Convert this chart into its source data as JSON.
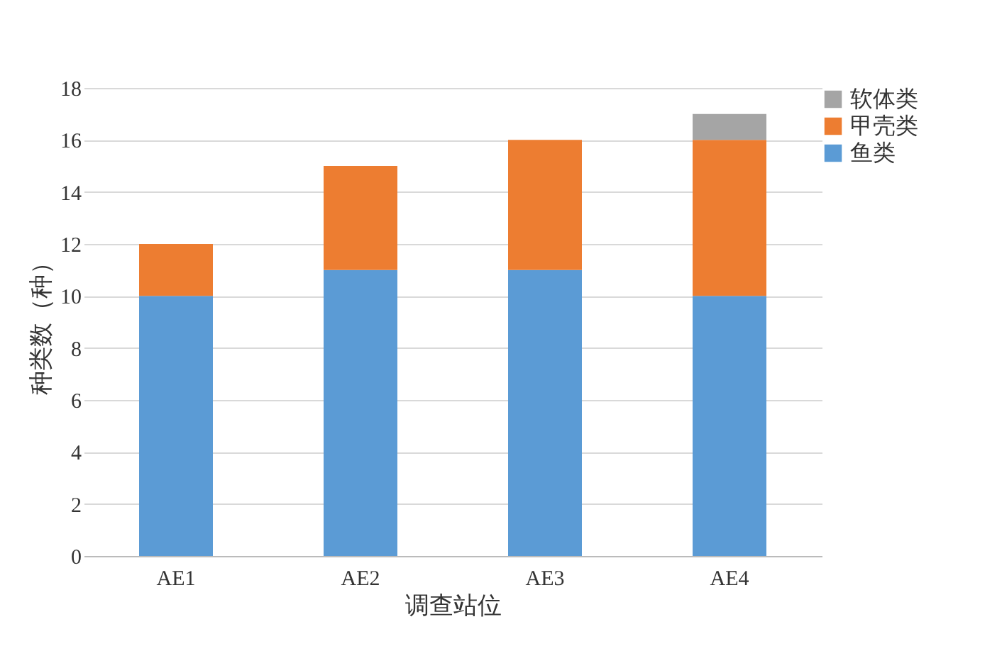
{
  "chart_data": {
    "type": "bar",
    "stacked": true,
    "xlabel": "调查站位",
    "ylabel": "种类数（种）",
    "categories": [
      "AE1",
      "AE2",
      "AE3",
      "AE4"
    ],
    "series": [
      {
        "name": "鱼类",
        "color": "#5b9bd5",
        "values": [
          10,
          11,
          11,
          10
        ]
      },
      {
        "name": "甲壳类",
        "color": "#ed7d31",
        "values": [
          2,
          4,
          5,
          6
        ]
      },
      {
        "name": "软体类",
        "color": "#a5a5a5",
        "values": [
          null,
          null,
          null,
          1
        ]
      }
    ],
    "ylim": [
      0,
      18
    ],
    "yticks": [
      0,
      2,
      4,
      6,
      8,
      10,
      12,
      14,
      16,
      18
    ],
    "grid": "y",
    "legend": "top right"
  }
}
